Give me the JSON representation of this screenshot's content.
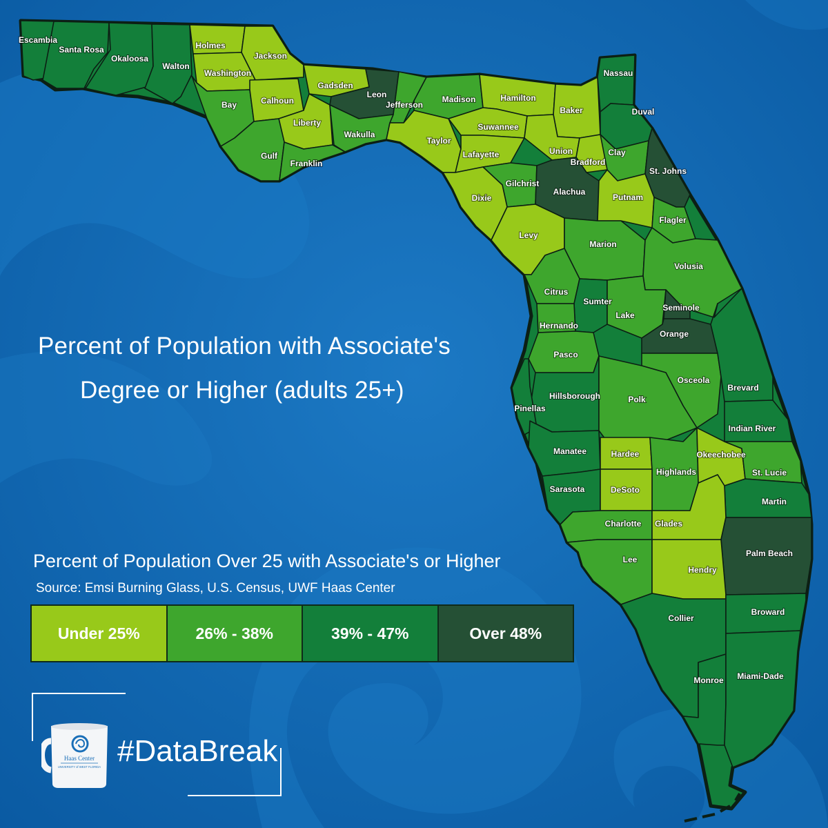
{
  "title": {
    "line1": "Percent of Population with Associate's",
    "line2": "Degree or Higher (adults 25+)"
  },
  "legend": {
    "title": "Percent of Population Over 25 with Associate's or Higher",
    "source": "Source: Emsi Burning Glass, U.S. Census, UWF Haas Center",
    "categories": [
      {
        "id": "c1",
        "label": "Under 25%",
        "color": "#98c91a"
      },
      {
        "id": "c2",
        "label": "26% - 38%",
        "color": "#3ea62d"
      },
      {
        "id": "c3",
        "label": "39% - 47%",
        "color": "#137f3a"
      },
      {
        "id": "c4",
        "label": "Over 48%",
        "color": "#255035"
      }
    ]
  },
  "counties": [
    {
      "name": "Escambia",
      "class": "c3"
    },
    {
      "name": "Santa Rosa",
      "class": "c3"
    },
    {
      "name": "Okaloosa",
      "class": "c3"
    },
    {
      "name": "Walton",
      "class": "c3"
    },
    {
      "name": "Holmes",
      "class": "c1"
    },
    {
      "name": "Jackson",
      "class": "c1"
    },
    {
      "name": "Washington",
      "class": "c1"
    },
    {
      "name": "Bay",
      "class": "c2"
    },
    {
      "name": "Calhoun",
      "class": "c1"
    },
    {
      "name": "Gadsden",
      "class": "c1"
    },
    {
      "name": "Leon",
      "class": "c4"
    },
    {
      "name": "Jefferson",
      "class": "c2"
    },
    {
      "name": "Madison",
      "class": "c2"
    },
    {
      "name": "Hamilton",
      "class": "c1"
    },
    {
      "name": "Baker",
      "class": "c1"
    },
    {
      "name": "Nassau",
      "class": "c3"
    },
    {
      "name": "Duval",
      "class": "c3"
    },
    {
      "name": "Liberty",
      "class": "c1"
    },
    {
      "name": "Wakulla",
      "class": "c2"
    },
    {
      "name": "Gulf",
      "class": "c2"
    },
    {
      "name": "Franklin",
      "class": "c2"
    },
    {
      "name": "Taylor",
      "class": "c1"
    },
    {
      "name": "Suwannee",
      "class": "c1"
    },
    {
      "name": "Lafayette",
      "class": "c1"
    },
    {
      "name": "Union",
      "class": "c1"
    },
    {
      "name": "Bradford",
      "class": "c1"
    },
    {
      "name": "Clay",
      "class": "c2"
    },
    {
      "name": "St. Johns",
      "class": "c4"
    },
    {
      "name": "Gilchrist",
      "class": "c2"
    },
    {
      "name": "Alachua",
      "class": "c4"
    },
    {
      "name": "Dixie",
      "class": "c1"
    },
    {
      "name": "Putnam",
      "class": "c1"
    },
    {
      "name": "Flagler",
      "class": "c2"
    },
    {
      "name": "Levy",
      "class": "c1"
    },
    {
      "name": "Marion",
      "class": "c2"
    },
    {
      "name": "Volusia",
      "class": "c2"
    },
    {
      "name": "Citrus",
      "class": "c2"
    },
    {
      "name": "Sumter",
      "class": "c3"
    },
    {
      "name": "Lake",
      "class": "c2"
    },
    {
      "name": "Seminole",
      "class": "c4"
    },
    {
      "name": "Orange",
      "class": "c4"
    },
    {
      "name": "Hernando",
      "class": "c2"
    },
    {
      "name": "Pasco",
      "class": "c2"
    },
    {
      "name": "Osceola",
      "class": "c2"
    },
    {
      "name": "Brevard",
      "class": "c3"
    },
    {
      "name": "Hillsborough",
      "class": "c3"
    },
    {
      "name": "Pinellas",
      "class": "c3"
    },
    {
      "name": "Polk",
      "class": "c2"
    },
    {
      "name": "Indian River",
      "class": "c3"
    },
    {
      "name": "Manatee",
      "class": "c3"
    },
    {
      "name": "Hardee",
      "class": "c1"
    },
    {
      "name": "Highlands",
      "class": "c2"
    },
    {
      "name": "Okeechobee",
      "class": "c1"
    },
    {
      "name": "St. Lucie",
      "class": "c2"
    },
    {
      "name": "Sarasota",
      "class": "c3"
    },
    {
      "name": "DeSoto",
      "class": "c1"
    },
    {
      "name": "Martin",
      "class": "c3"
    },
    {
      "name": "Charlotte",
      "class": "c2"
    },
    {
      "name": "Glades",
      "class": "c1"
    },
    {
      "name": "Palm Beach",
      "class": "c4"
    },
    {
      "name": "Lee",
      "class": "c2"
    },
    {
      "name": "Hendry",
      "class": "c1"
    },
    {
      "name": "Collier",
      "class": "c3"
    },
    {
      "name": "Broward",
      "class": "c3"
    },
    {
      "name": "Monroe",
      "class": "c3"
    },
    {
      "name": "Miami-Dade",
      "class": "c3"
    }
  ],
  "branding": {
    "hashtag": "#DataBreak",
    "mug_text_1": "Haas Center",
    "mug_text_2": "UNIVERSITY of WEST FLORIDA"
  }
}
